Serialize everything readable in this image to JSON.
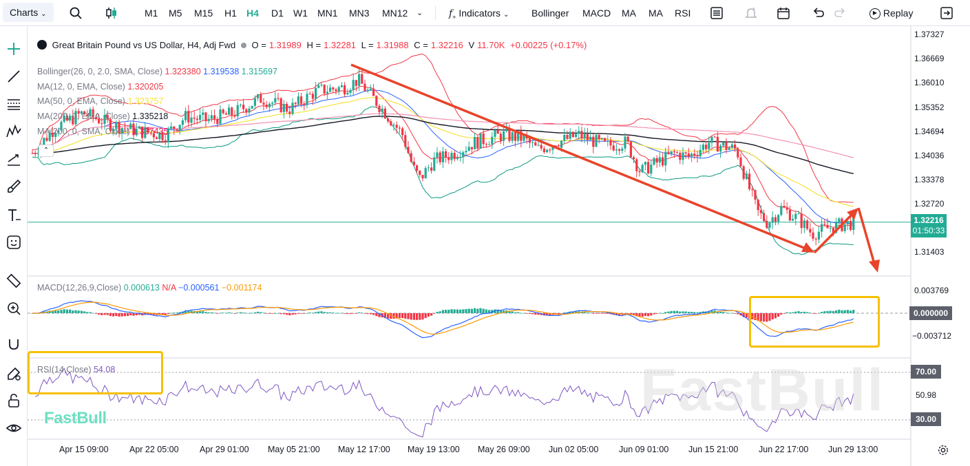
{
  "toolbar": {
    "charts_label": "Charts",
    "timeframes": [
      "M1",
      "M5",
      "M15",
      "H1",
      "H4",
      "D1",
      "W1",
      "MN1",
      "MN3",
      "MN12"
    ],
    "active_timeframe": "H4",
    "indicators_label": "Indicators",
    "quick_indicators": [
      "Bollinger",
      "MACD",
      "MA",
      "MA",
      "RSI"
    ],
    "replay_label": "Replay"
  },
  "symbol": {
    "name": "Great Britain Pound vs US Dollar, H4, Adj Fwd",
    "open_label": "O =",
    "open": "1.31989",
    "high_label": "H =",
    "high": "1.32281",
    "low_label": "L =",
    "low": "1.31988",
    "close_label": "C =",
    "close": "1.32216",
    "volume_label": "V",
    "volume": "11.70K",
    "change": "+0.00225 (+0.17%)"
  },
  "indicators": {
    "bollinger": {
      "label": "Bollinger(26, 0, 2.0, SMA, Close)",
      "v1": "1.323380",
      "v2": "1.319538",
      "v3": "1.315697"
    },
    "ma1": {
      "label": "MA(12, 0, EMA, Close)",
      "v": "1.320205"
    },
    "ma2": {
      "label": "MA(50, 0, EMA, Close)",
      "v": "1.323757"
    },
    "ma3": {
      "label": "MA(200, 0, EMA, Close)",
      "v": "1.335218"
    },
    "ma4": {
      "label": "MA(200, 0, SMA, Close)",
      "v": "1.337435"
    },
    "macd": {
      "label": "MACD(12,26,9,Close)",
      "v1": "0.000613",
      "v2": "N/A",
      "v3": "−0.000561",
      "v4": "−0.001174"
    },
    "rsi": {
      "label": "RSI(14,Close)",
      "v": "54.08"
    }
  },
  "price_axis": [
    "1.37327",
    "1.36669",
    "1.36010",
    "1.35352",
    "1.34694",
    "1.34036",
    "1.33378",
    "1.32720",
    "1.31403"
  ],
  "current_price": "1.32216",
  "countdown": "01:50:33",
  "macd_axis": [
    "0.003769",
    "0.000000",
    "−0.003712"
  ],
  "rsi_axis": [
    "70.00",
    "50.98",
    "30.00"
  ],
  "time_axis": [
    "Apr 15 09:00",
    "Apr 22 05:00",
    "Apr 29 01:00",
    "May 05 21:00",
    "May 12 17:00",
    "May 19 13:00",
    "May 26 09:00",
    "Jun 02 05:00",
    "Jun 09 01:00",
    "Jun 15 21:00",
    "Jun 22 17:00",
    "Jun 29 13:00"
  ],
  "watermark": "FastBull",
  "colors": {
    "accent": "#22ab94",
    "up": "#22ab94",
    "down": "#f23645",
    "arrow": "#e8442b",
    "highlight": "#f6c000"
  },
  "chart_data": {
    "type": "candlestick",
    "symbol": "GBPUSD",
    "timeframe": "H4",
    "ylim": [
      1.309,
      1.376
    ],
    "approx_close_path": [
      {
        "x": "Apr 10",
        "y": 1.341
      },
      {
        "x": "Apr 15 09:00",
        "y": 1.352
      },
      {
        "x": "Apr 22 05:00",
        "y": 1.348
      },
      {
        "x": "Apr 29 01:00",
        "y": 1.354
      },
      {
        "x": "May 05 21:00",
        "y": 1.359
      },
      {
        "x": "May 12 17:00",
        "y": 1.361
      },
      {
        "x": "May 19 13:00",
        "y": 1.334
      },
      {
        "x": "May 26 09:00",
        "y": 1.347
      },
      {
        "x": "Jun 02 05:00",
        "y": 1.345
      },
      {
        "x": "Jun 09 01:00",
        "y": 1.336
      },
      {
        "x": "Jun 15 21:00",
        "y": 1.343
      },
      {
        "x": "Jun 22 17:00",
        "y": 1.322
      },
      {
        "x": "Jun 29 13:00",
        "y": 1.32216
      }
    ]
  }
}
